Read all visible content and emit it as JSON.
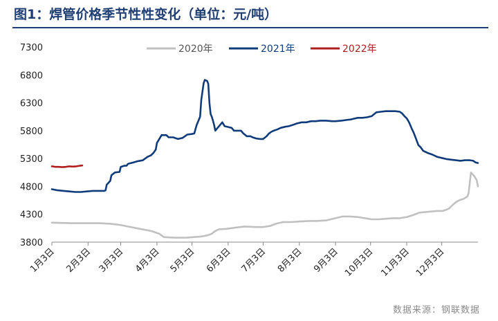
{
  "title": "图1：焊管价格季节性性变化（单位：元/吨）",
  "source": "数据来源：钢联数据",
  "chart_data": {
    "type": "line",
    "ylim": [
      3800,
      7300
    ],
    "yticks": [
      3800,
      4300,
      4800,
      5300,
      5800,
      6300,
      6800,
      7300
    ],
    "xlim": [
      0,
      365
    ],
    "xtick_labels": [
      "1月3日",
      "2月3日",
      "3月3日",
      "4月3日",
      "5月3日",
      "6月3日",
      "7月3日",
      "8月3日",
      "9月3日",
      "10月3日",
      "11月3日",
      "12月3日"
    ],
    "xtick_days": [
      0,
      31,
      59,
      90,
      120,
      151,
      181,
      212,
      243,
      273,
      304,
      334
    ],
    "grid": false,
    "legend_position": "top",
    "series": [
      {
        "name": "2020年",
        "color": "#c0c0c0",
        "points": [
          [
            0,
            4150
          ],
          [
            15,
            4140
          ],
          [
            30,
            4140
          ],
          [
            40,
            4140
          ],
          [
            50,
            4130
          ],
          [
            58,
            4110
          ],
          [
            65,
            4080
          ],
          [
            75,
            4040
          ],
          [
            85,
            4000
          ],
          [
            92,
            3950
          ],
          [
            96,
            3890
          ],
          [
            105,
            3880
          ],
          [
            115,
            3880
          ],
          [
            122,
            3890
          ],
          [
            128,
            3900
          ],
          [
            133,
            3920
          ],
          [
            137,
            3950
          ],
          [
            140,
            4000
          ],
          [
            143,
            4030
          ],
          [
            150,
            4040
          ],
          [
            157,
            4060
          ],
          [
            165,
            4080
          ],
          [
            175,
            4070
          ],
          [
            181,
            4070
          ],
          [
            187,
            4090
          ],
          [
            192,
            4130
          ],
          [
            198,
            4160
          ],
          [
            205,
            4160
          ],
          [
            212,
            4170
          ],
          [
            220,
            4180
          ],
          [
            227,
            4180
          ],
          [
            235,
            4190
          ],
          [
            243,
            4230
          ],
          [
            249,
            4260
          ],
          [
            255,
            4260
          ],
          [
            262,
            4250
          ],
          [
            268,
            4230
          ],
          [
            274,
            4210
          ],
          [
            280,
            4210
          ],
          [
            286,
            4220
          ],
          [
            292,
            4230
          ],
          [
            298,
            4230
          ],
          [
            304,
            4250
          ],
          [
            310,
            4290
          ],
          [
            315,
            4330
          ],
          [
            320,
            4340
          ],
          [
            325,
            4350
          ],
          [
            330,
            4360
          ],
          [
            335,
            4360
          ],
          [
            340,
            4400
          ],
          [
            344,
            4480
          ],
          [
            347,
            4530
          ],
          [
            350,
            4560
          ],
          [
            353,
            4580
          ],
          [
            356,
            4620
          ],
          [
            357,
            4680
          ],
          [
            359,
            5050
          ],
          [
            362,
            4980
          ],
          [
            364,
            4910
          ],
          [
            365,
            4800
          ]
        ]
      },
      {
        "name": "2021年",
        "color": "#0f3b7a",
        "points": [
          [
            0,
            4750
          ],
          [
            5,
            4730
          ],
          [
            10,
            4720
          ],
          [
            15,
            4710
          ],
          [
            20,
            4700
          ],
          [
            25,
            4700
          ],
          [
            30,
            4710
          ],
          [
            35,
            4720
          ],
          [
            40,
            4720
          ],
          [
            45,
            4720
          ],
          [
            46,
            4730
          ],
          [
            47,
            4830
          ],
          [
            50,
            4900
          ],
          [
            51,
            5000
          ],
          [
            54,
            5050
          ],
          [
            58,
            5060
          ],
          [
            59,
            5150
          ],
          [
            62,
            5170
          ],
          [
            64,
            5170
          ],
          [
            65,
            5200
          ],
          [
            66,
            5210
          ],
          [
            70,
            5230
          ],
          [
            73,
            5250
          ],
          [
            78,
            5270
          ],
          [
            82,
            5330
          ],
          [
            85,
            5360
          ],
          [
            87,
            5400
          ],
          [
            89,
            5460
          ],
          [
            90,
            5580
          ],
          [
            92,
            5650
          ],
          [
            94,
            5720
          ],
          [
            98,
            5720
          ],
          [
            100,
            5680
          ],
          [
            104,
            5680
          ],
          [
            108,
            5650
          ],
          [
            112,
            5670
          ],
          [
            114,
            5700
          ],
          [
            116,
            5730
          ],
          [
            120,
            5740
          ],
          [
            122,
            5750
          ],
          [
            124,
            5900
          ],
          [
            126,
            6000
          ],
          [
            127,
            6050
          ],
          [
            128,
            6350
          ],
          [
            129,
            6500
          ],
          [
            130,
            6650
          ],
          [
            131,
            6710
          ],
          [
            133,
            6690
          ],
          [
            134,
            6640
          ],
          [
            135,
            6300
          ],
          [
            136,
            6100
          ],
          [
            137,
            6050
          ],
          [
            138,
            5980
          ],
          [
            139,
            5900
          ],
          [
            140,
            5800
          ],
          [
            142,
            5850
          ],
          [
            144,
            5900
          ],
          [
            146,
            5950
          ],
          [
            148,
            5880
          ],
          [
            152,
            5860
          ],
          [
            154,
            5850
          ],
          [
            156,
            5800
          ],
          [
            158,
            5800
          ],
          [
            162,
            5800
          ],
          [
            164,
            5750
          ],
          [
            167,
            5700
          ],
          [
            170,
            5700
          ],
          [
            172,
            5680
          ],
          [
            175,
            5660
          ],
          [
            178,
            5650
          ],
          [
            181,
            5650
          ],
          [
            184,
            5700
          ],
          [
            186,
            5750
          ],
          [
            188,
            5780
          ],
          [
            190,
            5800
          ],
          [
            193,
            5820
          ],
          [
            196,
            5850
          ],
          [
            200,
            5870
          ],
          [
            203,
            5880
          ],
          [
            206,
            5900
          ],
          [
            210,
            5930
          ],
          [
            214,
            5950
          ],
          [
            218,
            5950
          ],
          [
            222,
            5970
          ],
          [
            226,
            5970
          ],
          [
            230,
            5980
          ],
          [
            235,
            5980
          ],
          [
            240,
            5970
          ],
          [
            243,
            5970
          ],
          [
            248,
            5980
          ],
          [
            252,
            5990
          ],
          [
            256,
            6000
          ],
          [
            258,
            6010
          ],
          [
            262,
            6030
          ],
          [
            266,
            6030
          ],
          [
            270,
            6040
          ],
          [
            274,
            6060
          ],
          [
            278,
            6130
          ],
          [
            282,
            6140
          ],
          [
            286,
            6150
          ],
          [
            290,
            6150
          ],
          [
            294,
            6150
          ],
          [
            298,
            6140
          ],
          [
            300,
            6110
          ],
          [
            302,
            6060
          ],
          [
            304,
            6020
          ],
          [
            306,
            5950
          ],
          [
            308,
            5850
          ],
          [
            310,
            5760
          ],
          [
            312,
            5650
          ],
          [
            314,
            5540
          ],
          [
            316,
            5500
          ],
          [
            318,
            5440
          ],
          [
            322,
            5400
          ],
          [
            326,
            5370
          ],
          [
            330,
            5330
          ],
          [
            334,
            5310
          ],
          [
            338,
            5290
          ],
          [
            342,
            5280
          ],
          [
            346,
            5270
          ],
          [
            350,
            5260
          ],
          [
            354,
            5270
          ],
          [
            358,
            5270
          ],
          [
            361,
            5260
          ],
          [
            363,
            5230
          ],
          [
            365,
            5220
          ]
        ]
      },
      {
        "name": "2022年",
        "color": "#b01d1d",
        "points": [
          [
            0,
            5160
          ],
          [
            3,
            5150
          ],
          [
            6,
            5150
          ],
          [
            9,
            5145
          ],
          [
            12,
            5150
          ],
          [
            15,
            5160
          ],
          [
            18,
            5155
          ],
          [
            21,
            5160
          ],
          [
            24,
            5170
          ],
          [
            26,
            5175
          ]
        ]
      }
    ]
  }
}
